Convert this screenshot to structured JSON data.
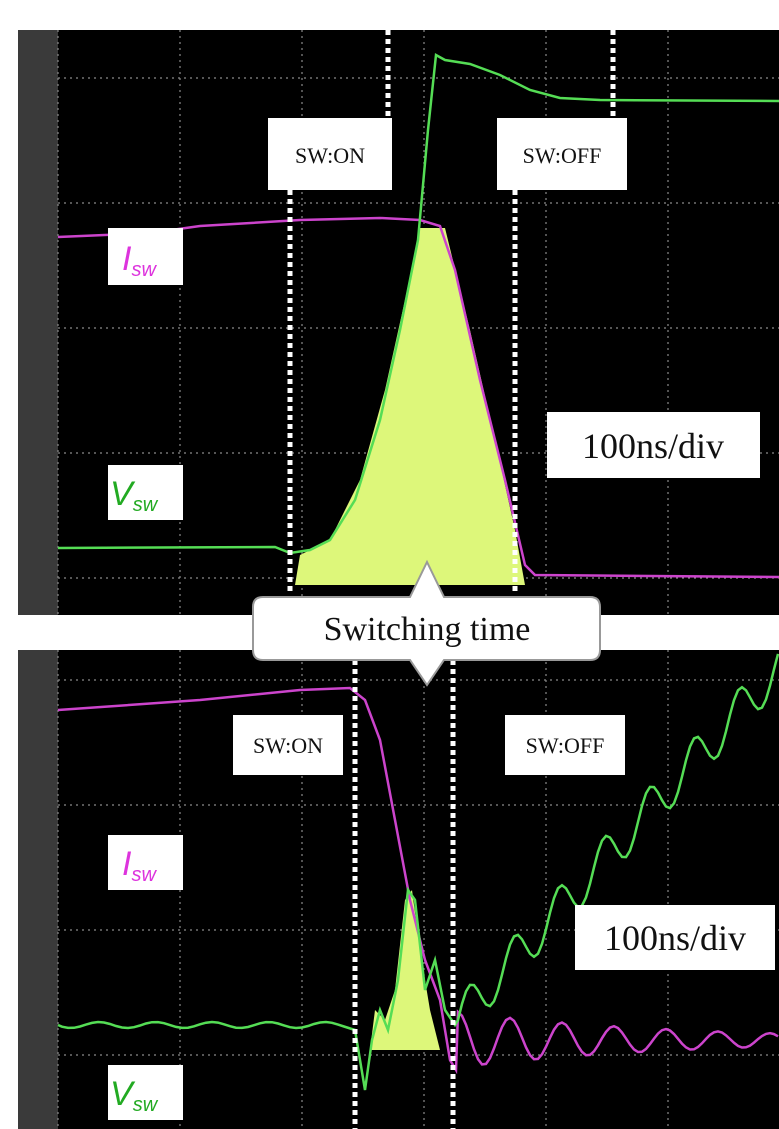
{
  "panels": [
    {
      "on_marker": "SW:ON",
      "off_marker": "SW:OFF",
      "current_label": {
        "symbol": "I",
        "subscript": "sw"
      },
      "voltage_label": {
        "symbol": "V",
        "subscript": "sw"
      },
      "timebase": "100ns/div"
    },
    {
      "on_marker": "SW:ON",
      "off_marker": "SW:OFF",
      "current_label": {
        "symbol": "I",
        "subscript": "sw"
      },
      "voltage_label": {
        "symbol": "V",
        "subscript": "sw"
      },
      "timebase": "100ns/div"
    }
  ],
  "callout": "Switching time"
}
